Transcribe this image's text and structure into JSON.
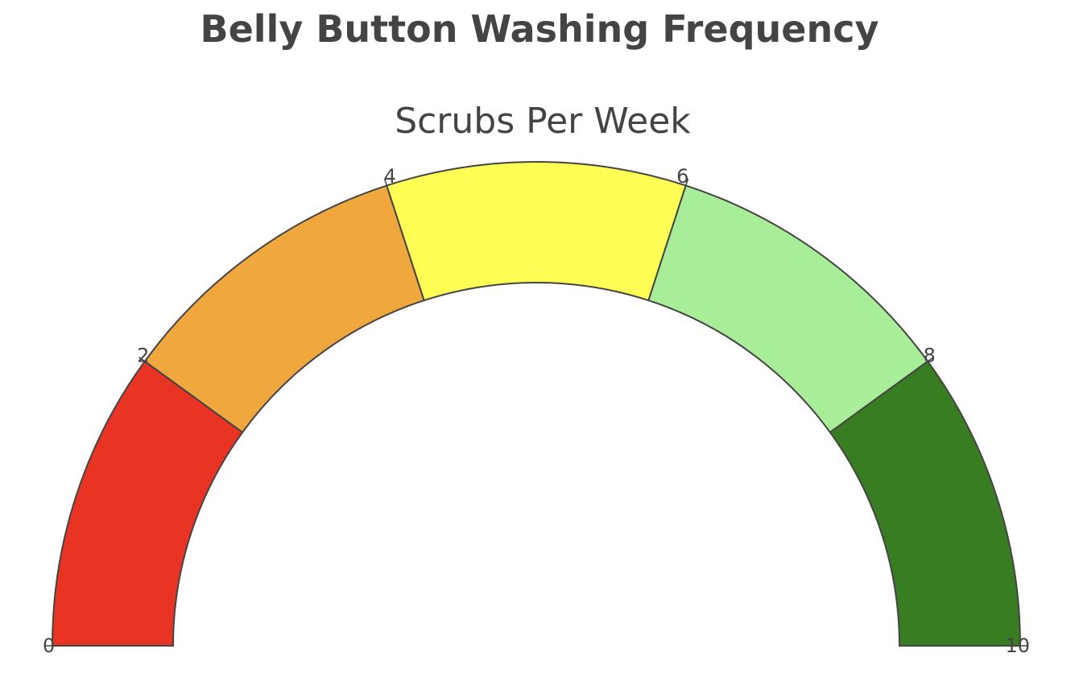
{
  "chart_data": {
    "type": "gauge",
    "title": "Belly Button Washing Frequency",
    "subtitle": "Scrubs Per Week",
    "range": [
      0,
      10
    ],
    "ticks": [
      {
        "value": 0,
        "label": "0"
      },
      {
        "value": 2,
        "label": "2"
      },
      {
        "value": 4,
        "label": "4"
      },
      {
        "value": 6,
        "label": "6"
      },
      {
        "value": 8,
        "label": "8"
      },
      {
        "value": 10,
        "label": "10"
      }
    ],
    "bands": [
      {
        "from": 0,
        "to": 2.0,
        "color": "#e93323"
      },
      {
        "from": 2.0,
        "to": 4.0,
        "color": "#f0a73d"
      },
      {
        "from": 4.0,
        "to": 6.0,
        "color": "#fffe54"
      },
      {
        "from": 6.0,
        "to": 8.0,
        "color": "#a8ed97"
      },
      {
        "from": 8.0,
        "to": 10,
        "color": "#387d22"
      }
    ],
    "outline_color": "#444444"
  }
}
